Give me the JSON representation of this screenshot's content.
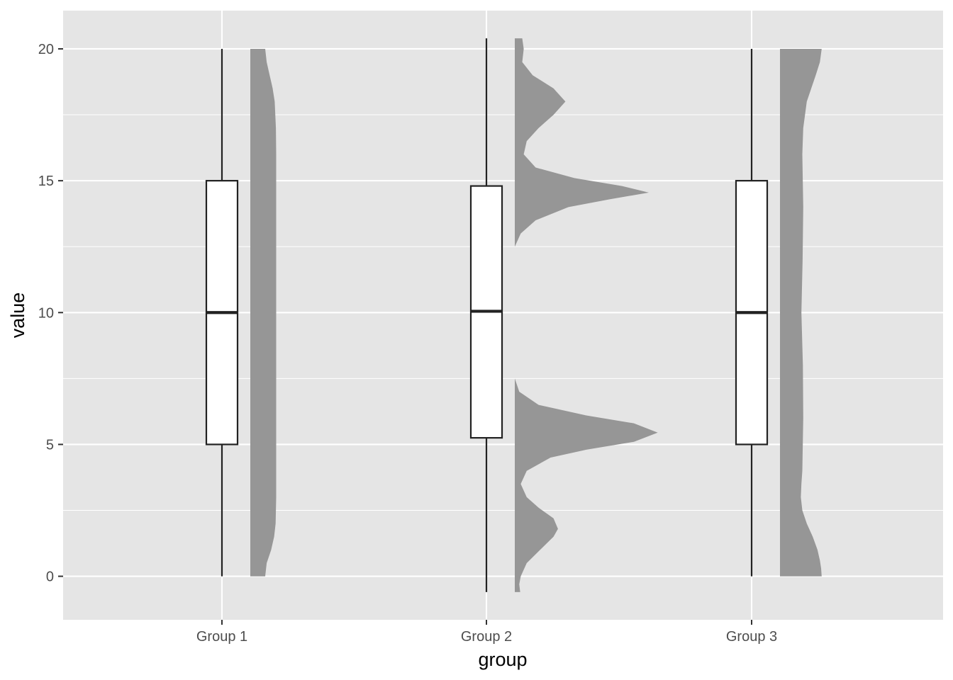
{
  "chart_data": {
    "type": "boxplot",
    "xlabel": "group",
    "ylabel": "value",
    "ylim": [
      -1.65,
      21.45
    ],
    "y_ticks": [
      0,
      5,
      10,
      15,
      20
    ],
    "y_tick_labels": [
      "0",
      "5",
      "10",
      "15",
      "20"
    ],
    "categories": [
      "Group 1",
      "Group 2",
      "Group 3"
    ],
    "grid": true,
    "colors": {
      "panel": "#e5e5e5",
      "grid": "#ffffff",
      "box_fill": "#ffffff",
      "box_line": "#222222",
      "density_fill": "#969696",
      "axis_text": "#4d4d4d"
    },
    "boxes": [
      {
        "category": "Group 1",
        "min": 0,
        "q1": 5,
        "median": 10,
        "q3": 15,
        "max": 20
      },
      {
        "category": "Group 2",
        "min": -0.6,
        "q1": 5.25,
        "median": 10.05,
        "q3": 14.8,
        "max": 20.4
      },
      {
        "category": "Group 3",
        "min": 0,
        "q1": 5,
        "median": 10,
        "q3": 15,
        "max": 20
      }
    ],
    "densities": [
      {
        "category": "Group 1",
        "y": [
          0,
          0.5,
          1,
          1.5,
          2,
          3,
          4,
          6,
          8,
          10,
          12,
          14,
          16,
          17,
          18,
          18.5,
          19,
          19.5,
          20
        ],
        "density": [
          0.05,
          0.055,
          0.07,
          0.08,
          0.085,
          0.087,
          0.087,
          0.087,
          0.087,
          0.087,
          0.087,
          0.087,
          0.087,
          0.086,
          0.082,
          0.075,
          0.065,
          0.055,
          0.05
        ]
      },
      {
        "category": "Group 2",
        "y": [
          -0.6,
          -0.3,
          0,
          0.5,
          1,
          1.5,
          1.8,
          2.2,
          2.6,
          3,
          3.5,
          4,
          4.5,
          4.8,
          5.1,
          5.45,
          5.8,
          6.1,
          6.5,
          7,
          7.5,
          8,
          9,
          10,
          11,
          12,
          12.5,
          13,
          13.5,
          14,
          14.3,
          14.55,
          14.8,
          15.1,
          15.5,
          16,
          16.5,
          17,
          17.5,
          18,
          18.5,
          19,
          19.5,
          20,
          20.4
        ],
        "density": [
          0.018,
          0.015,
          0.02,
          0.04,
          0.085,
          0.13,
          0.145,
          0.13,
          0.08,
          0.04,
          0.02,
          0.04,
          0.12,
          0.24,
          0.4,
          0.48,
          0.4,
          0.24,
          0.08,
          0.015,
          0,
          0,
          0,
          0,
          0,
          0,
          0,
          0.02,
          0.07,
          0.18,
          0.32,
          0.45,
          0.36,
          0.2,
          0.07,
          0.03,
          0.04,
          0.08,
          0.13,
          0.17,
          0.13,
          0.06,
          0.025,
          0.03,
          0.025
        ]
      },
      {
        "category": "Group 3",
        "y": [
          0,
          0.3,
          0.6,
          1,
          1.5,
          2,
          2.5,
          3,
          3.5,
          4,
          6,
          8,
          10,
          12,
          14,
          16,
          17,
          18,
          18.5,
          19,
          19.5,
          20
        ],
        "density": [
          0.14,
          0.138,
          0.134,
          0.126,
          0.11,
          0.09,
          0.075,
          0.07,
          0.072,
          0.075,
          0.078,
          0.077,
          0.072,
          0.076,
          0.078,
          0.075,
          0.078,
          0.09,
          0.105,
          0.12,
          0.134,
          0.14
        ]
      }
    ]
  }
}
